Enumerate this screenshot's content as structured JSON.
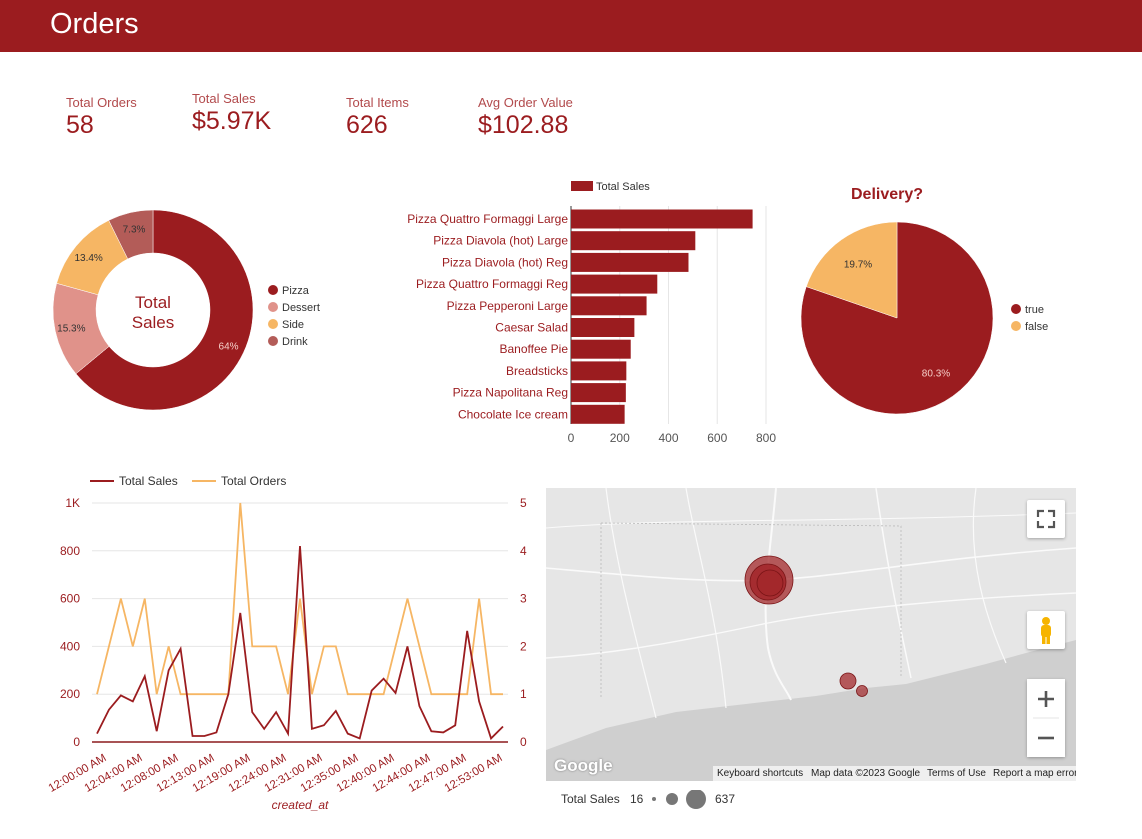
{
  "header": {
    "title": "Orders"
  },
  "kpis": [
    {
      "label": "Total Orders",
      "value": "58"
    },
    {
      "label": "Total Sales",
      "value": "$5.97K"
    },
    {
      "label": "Total Items",
      "value": "626"
    },
    {
      "label": "Avg Order Value",
      "value": "$102.88"
    }
  ],
  "colors": {
    "primary": "#9b1c1f",
    "dessert": "#e0928a",
    "side": "#f6b664",
    "drink": "#b35c58",
    "map_bg": "#e6e6e6"
  },
  "chart_data": [
    {
      "type": "pie",
      "center_label": [
        "Total",
        "Sales"
      ],
      "categories": [
        "Pizza",
        "Dessert",
        "Side",
        "Drink"
      ],
      "values": [
        64,
        15.3,
        13.4,
        7.3
      ],
      "labels": [
        "64%",
        "15.3%",
        "13.4%",
        "7.3%"
      ],
      "legend": "right"
    },
    {
      "type": "bar",
      "orientation": "horizontal",
      "series_name": "Total Sales",
      "categories": [
        "Pizza Quattro Formaggi Large",
        "Pizza Diavola (hot) Large",
        "Pizza Diavola (hot) Reg",
        "Pizza Quattro Formaggi Reg",
        "Pizza Pepperoni Large",
        "Caesar Salad",
        "Banoffee Pie",
        "Breadsticks",
        "Pizza Napolitana Reg",
        "Chocolate Ice cream"
      ],
      "values": [
        745,
        510,
        482,
        354,
        310,
        260,
        245,
        227,
        225,
        220
      ],
      "xticks": [
        "0",
        "200",
        "400",
        "600",
        "800"
      ],
      "xlim": [
        0,
        800
      ],
      "legend": "top"
    },
    {
      "type": "pie",
      "title": "Delivery?",
      "categories": [
        "true",
        "false"
      ],
      "values": [
        80.3,
        19.7
      ],
      "labels": [
        "80.3%",
        "19.7%"
      ],
      "legend": "right"
    },
    {
      "type": "line",
      "xlabel": "created_at",
      "x_tick_labels": [
        "12:00:00 AM",
        "12:04:00 AM",
        "12:08:00 AM",
        "12:13:00 AM",
        "12:19:00 AM",
        "12:24:00 AM",
        "12:31:00 AM",
        "12:35:00 AM",
        "12:40:00 AM",
        "12:44:00 AM",
        "12:47:00 AM",
        "12:53:00 AM"
      ],
      "y_left_ticks": [
        "0",
        "200",
        "400",
        "600",
        "800",
        "1K"
      ],
      "y_right_ticks": [
        "0",
        "1",
        "2",
        "3",
        "4",
        "5"
      ],
      "ylim_left": [
        0,
        1000
      ],
      "ylim_right": [
        0,
        5
      ],
      "series": [
        {
          "name": "Total Sales",
          "axis": "left",
          "values": [
            35,
            135,
            195,
            170,
            275,
            45,
            300,
            390,
            25,
            25,
            40,
            200,
            540,
            125,
            55,
            125,
            35,
            820,
            55,
            70,
            130,
            35,
            15,
            215,
            265,
            205,
            400,
            150,
            45,
            40,
            70,
            465,
            170,
            15,
            65
          ]
        },
        {
          "name": "Total Orders",
          "axis": "right",
          "values": [
            1,
            2,
            3,
            2,
            3,
            1,
            2,
            1,
            1,
            1,
            1,
            1,
            5,
            2,
            2,
            2,
            1,
            3,
            1,
            2,
            2,
            1,
            1,
            1,
            1,
            2,
            3,
            2,
            1,
            1,
            1,
            1,
            3,
            1,
            1
          ]
        }
      ],
      "legend": "top"
    }
  ],
  "map": {
    "attribution": {
      "shortcuts": "Keyboard shortcuts",
      "data": "Map data ©2023 Google",
      "terms": "Terms of Use",
      "report": "Report a map error"
    },
    "google_logo": "Google",
    "controls": [
      "fullscreen-icon",
      "pegman-icon",
      "zoom-in-icon",
      "zoom-out-icon"
    ],
    "legend": {
      "label": "Total Sales",
      "min": "16",
      "max": "637"
    }
  }
}
